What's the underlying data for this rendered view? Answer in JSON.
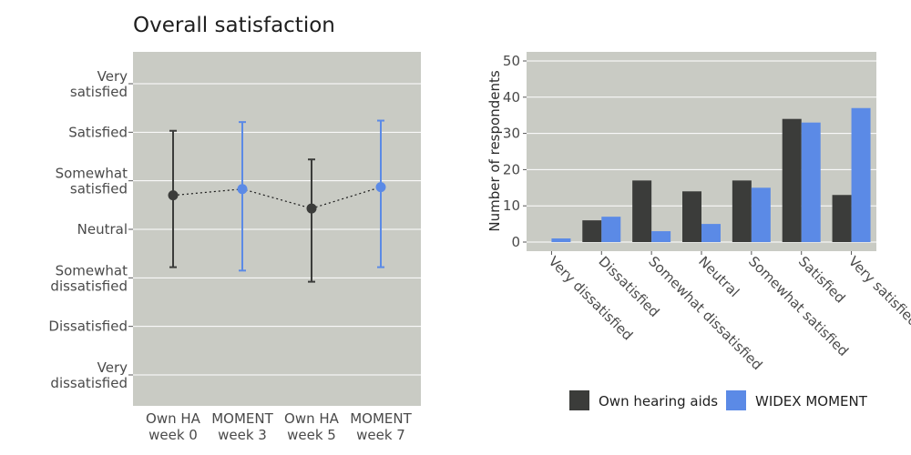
{
  "colors": {
    "panel_bg": "#c9cbc4",
    "gridline": "#ffffff",
    "own": "#3b3c3a",
    "moment": "#5b8ae6",
    "text": "#4a4a4a"
  },
  "chart_data": [
    {
      "type": "scatter",
      "title": "Overall satisfaction",
      "xlabel": "",
      "ylabel": "",
      "grid": true,
      "y_categories": [
        "Very dissatisfied",
        "Dissatisfied",
        "Somewhat dissatisfied",
        "Neutral",
        "Somewhat satisfied",
        "Satisfied",
        "Very satisfied"
      ],
      "y_tick_lines": [
        [
          "Very",
          "dissatisfied"
        ],
        [
          "Dissatisfied"
        ],
        [
          "Somewhat",
          "dissatisfied"
        ],
        [
          "Neutral"
        ],
        [
          "Somewhat",
          "satisfied"
        ],
        [
          "Satisfied"
        ],
        [
          "Very",
          "satisfied"
        ]
      ],
      "ylim": [
        1,
        7
      ],
      "x_categories": [
        [
          "Own HA",
          "week 0"
        ],
        [
          "MOMENT",
          "week 3"
        ],
        [
          "Own HA",
          "week 5"
        ],
        [
          "MOMENT",
          "week 7"
        ]
      ],
      "points": [
        {
          "group": "own",
          "mean": 4.7,
          "lower": 3.22,
          "upper": 6.03
        },
        {
          "group": "moment",
          "mean": 4.83,
          "lower": 3.15,
          "upper": 6.21
        },
        {
          "group": "own",
          "mean": 4.43,
          "lower": 2.92,
          "upper": 5.44
        },
        {
          "group": "moment",
          "mean": 4.87,
          "lower": 3.22,
          "upper": 6.24
        }
      ],
      "connector": "dotted"
    },
    {
      "type": "bar",
      "categories": [
        "Very dissatisfied",
        "Dissatisfied",
        "Somewhat dissatisfied",
        "Neutral",
        "Somewhat satisfied",
        "Satisfied",
        "Very satisfied"
      ],
      "series": [
        {
          "name": "Own hearing aids",
          "key": "own",
          "values": [
            0,
            6,
            17,
            14,
            17,
            34,
            13
          ]
        },
        {
          "name": "WIDEX MOMENT",
          "key": "moment",
          "values": [
            1,
            7,
            3,
            5,
            15,
            33,
            37
          ]
        }
      ],
      "ylabel": "Number of respondents",
      "ylim": [
        0,
        52
      ],
      "yticks": [
        0,
        10,
        20,
        30,
        40,
        50
      ],
      "grid": true,
      "legend_position": "bottom"
    }
  ]
}
